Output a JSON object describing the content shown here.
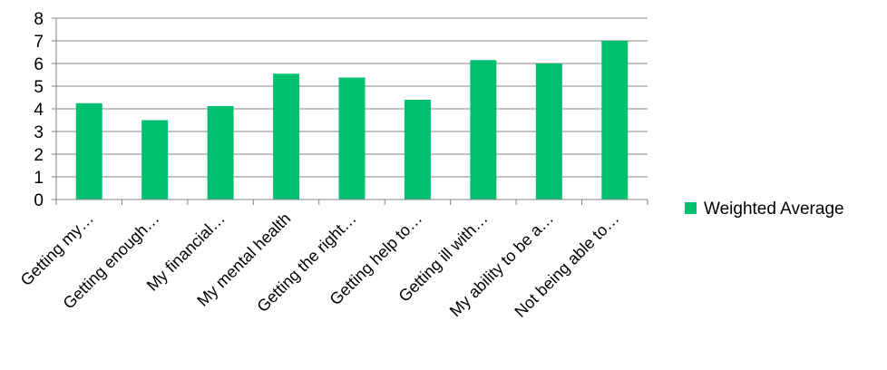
{
  "chart_data": {
    "type": "bar",
    "title": "",
    "xlabel": "",
    "ylabel": "",
    "ylim": [
      0,
      8
    ],
    "yticks": [
      0,
      1,
      2,
      3,
      4,
      5,
      6,
      7,
      8
    ],
    "grid": true,
    "legend_position": "right",
    "categories": [
      "Getting my…",
      "Getting enough…",
      "My financial…",
      "My mental health",
      "Getting the right…",
      "Getting help to…",
      "Getting ill with…",
      "My ability to be a…",
      "Not being able to…"
    ],
    "series": [
      {
        "name": "Weighted Average",
        "color": "#00c070",
        "values": [
          4.25,
          3.5,
          4.12,
          5.55,
          5.38,
          4.4,
          6.15,
          6.0,
          7.0
        ]
      }
    ]
  }
}
